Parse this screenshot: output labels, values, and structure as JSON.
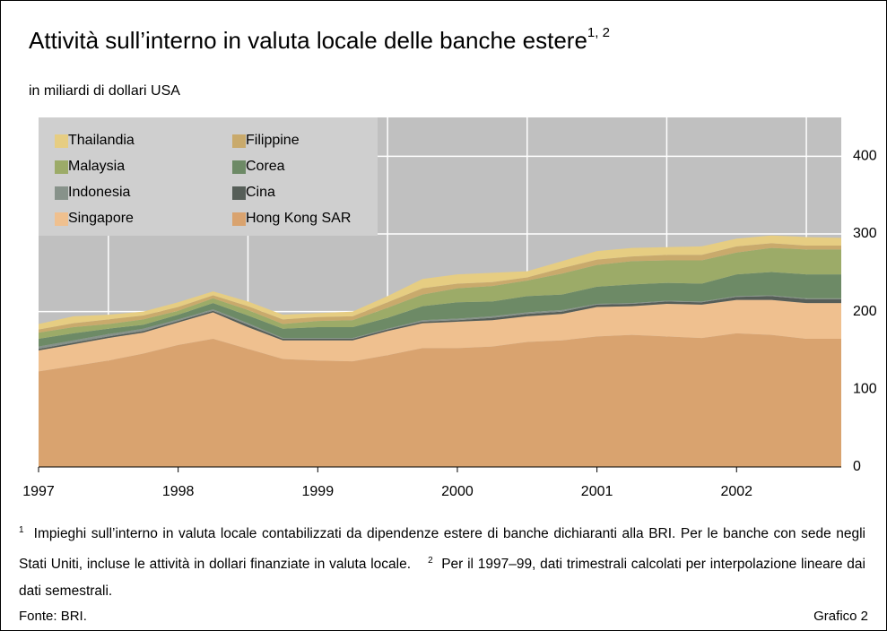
{
  "chart_data": {
    "type": "stacked_area",
    "title": "Attività sull’interno in valuta locale delle banche estere",
    "title_note": "1, 2",
    "subtitle": "in miliardi di dollari USA",
    "x": [
      1997,
      1997.25,
      1997.5,
      1997.75,
      1998,
      1998.25,
      1998.5,
      1998.75,
      1999,
      1999.25,
      1999.5,
      1999.75,
      2000,
      2000.25,
      2000.5,
      2000.75,
      2001,
      2001.25,
      2001.5,
      2001.75,
      2002,
      2002.25,
      2002.5,
      2002.75
    ],
    "xlim": [
      1997,
      2002.75
    ],
    "xticks": [
      1997,
      1998,
      1999,
      2000,
      2001,
      2002
    ],
    "ylim": [
      0,
      450
    ],
    "yticks": [
      0,
      100,
      200,
      300,
      400
    ],
    "grid": true,
    "legend": "upper left",
    "series": [
      {
        "name": "Hong Kong SAR",
        "color": "#d9a36f",
        "values": [
          123,
          130,
          137,
          146,
          157,
          165,
          152,
          139,
          137,
          136,
          144,
          153,
          153,
          155,
          161,
          163,
          168,
          170,
          168,
          166,
          172,
          170,
          165,
          165
        ]
      },
      {
        "name": "Singapore",
        "color": "#efc08f",
        "values": [
          27,
          28,
          29,
          27,
          29,
          34,
          28,
          24,
          26,
          27,
          31,
          32,
          34,
          34,
          33,
          34,
          38,
          37,
          42,
          43,
          43,
          45,
          46,
          46
        ]
      },
      {
        "name": "Cina",
        "color": "#565e58",
        "values": [
          2,
          2,
          2,
          2,
          2,
          2,
          3,
          2,
          2,
          2,
          2,
          2,
          2,
          3,
          3,
          3,
          3,
          3,
          3,
          3,
          4,
          5,
          5,
          5
        ]
      },
      {
        "name": "Indonesia",
        "color": "#87928a",
        "values": [
          3,
          3,
          3,
          3,
          2,
          2,
          2,
          1,
          1,
          1,
          1,
          2,
          2,
          2,
          2,
          2,
          1,
          1,
          1,
          1,
          1,
          1,
          1,
          1
        ]
      },
      {
        "name": "Corea",
        "color": "#6d8a66",
        "values": [
          10,
          9,
          7,
          5,
          6,
          8,
          10,
          12,
          14,
          14,
          14,
          18,
          21,
          19,
          21,
          20,
          22,
          24,
          23,
          23,
          28,
          30,
          31,
          31
        ]
      },
      {
        "name": "Malaysia",
        "color": "#9cab68",
        "values": [
          8,
          8,
          6,
          7,
          5,
          6,
          7,
          6,
          8,
          9,
          13,
          15,
          18,
          20,
          20,
          27,
          28,
          30,
          29,
          30,
          28,
          31,
          32,
          32
        ]
      },
      {
        "name": "Filippine",
        "color": "#c9aa6c",
        "values": [
          4,
          5,
          6,
          5,
          5,
          4,
          5,
          6,
          5,
          5,
          7,
          8,
          6,
          5,
          4,
          7,
          7,
          6,
          7,
          7,
          8,
          6,
          5,
          5
        ]
      },
      {
        "name": "Thailandia",
        "color": "#e6cd82",
        "values": [
          7,
          9,
          6,
          5,
          6,
          5,
          6,
          6,
          5,
          6,
          8,
          12,
          12,
          12,
          8,
          9,
          11,
          11,
          10,
          11,
          10,
          10,
          11,
          10
        ]
      }
    ],
    "footnotes": [
      {
        "marker": "1",
        "text": "Impieghi sull’interno in valuta locale contabilizzati da dipendenze estere di banche dichiaranti alla BRI. Per le banche con sede negli Stati Uniti, incluse le attività in dollari finanziate in valuta locale."
      },
      {
        "marker": "2",
        "text": "Per il 1997–99, dati trimestrali calcolati per interpolazione lineare dai dati semestrali."
      }
    ],
    "source": "Fonte: BRI.",
    "chart_label": "Grafico 2"
  }
}
